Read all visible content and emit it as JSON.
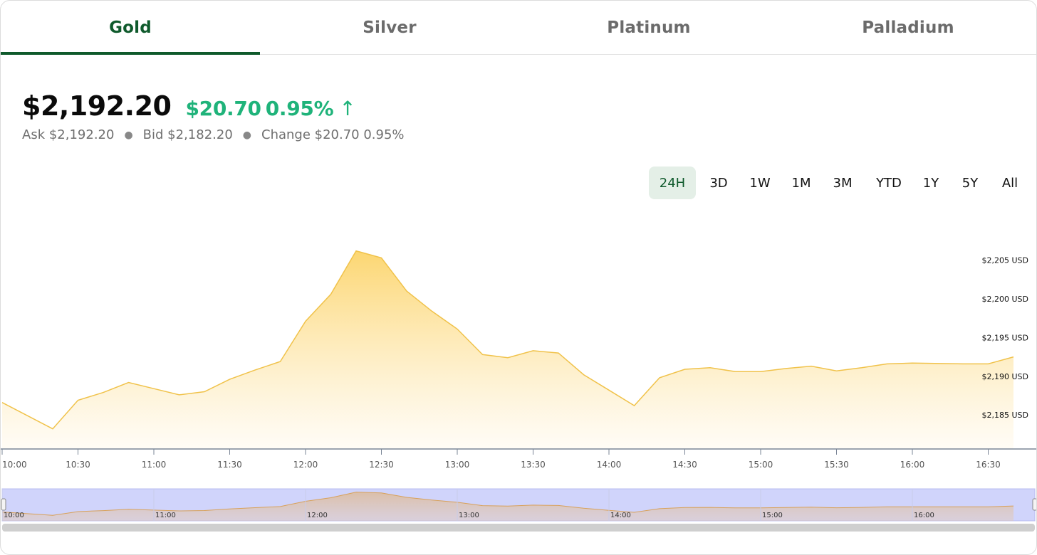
{
  "tabs": [
    {
      "label": "Gold",
      "active": true
    },
    {
      "label": "Silver",
      "active": false
    },
    {
      "label": "Platinum",
      "active": false
    },
    {
      "label": "Palladium",
      "active": false
    }
  ],
  "quote": {
    "price": "$2,192.20",
    "change": "$20.70",
    "change_pct": "0.95%",
    "arrow": "↑",
    "ask": "Ask $2,192.20",
    "bid": "Bid $2,182.20",
    "change_summary": "Change $20.70 0.95%"
  },
  "ranges": [
    {
      "label": "24H",
      "active": true
    },
    {
      "label": "3D",
      "active": false
    },
    {
      "label": "1W",
      "active": false
    },
    {
      "label": "1M",
      "active": false
    },
    {
      "label": "3M",
      "active": false
    },
    {
      "label": "YTD",
      "active": false
    },
    {
      "label": "1Y",
      "active": false
    },
    {
      "label": "5Y",
      "active": false
    },
    {
      "label": "All",
      "active": false
    }
  ],
  "colors": {
    "accent_green": "#0f5a2c",
    "positive": "#1fb37a",
    "line": "#f0c24a",
    "fill_top": "#fcd46a",
    "navigator_bg": "#d0d4fb"
  },
  "chart_data": {
    "type": "area",
    "ylim": [
      2180.6,
      2208.0
    ],
    "ytick_labels": [
      "$2,185 USD",
      "$2,190 USD",
      "$2,195 USD",
      "$2,200 USD",
      "$2,205 USD"
    ],
    "ytick_values": [
      2185,
      2190,
      2195,
      2200,
      2205
    ],
    "xtick_labels": [
      "10:00",
      "10:30",
      "11:00",
      "11:30",
      "12:00",
      "12:30",
      "13:00",
      "13:30",
      "14:00",
      "14:30",
      "15:00",
      "15:30",
      "16:00",
      "16:30"
    ],
    "xtick_values": [
      0,
      30,
      60,
      90,
      120,
      150,
      180,
      210,
      240,
      270,
      300,
      330,
      360,
      390
    ],
    "navigator_labels": [
      "10:00",
      "11:00",
      "12:00",
      "13:00",
      "14:00",
      "15:00",
      "16:00"
    ],
    "navigator_values": [
      0,
      60,
      120,
      180,
      240,
      300,
      360
    ],
    "points": [
      [
        0,
        2186.6
      ],
      [
        20,
        2183.2
      ],
      [
        30,
        2186.9
      ],
      [
        40,
        2187.9
      ],
      [
        50,
        2189.2
      ],
      [
        60,
        2188.4
      ],
      [
        70,
        2187.6
      ],
      [
        80,
        2188.0
      ],
      [
        90,
        2189.6
      ],
      [
        100,
        2190.8
      ],
      [
        110,
        2191.9
      ],
      [
        120,
        2197.1
      ],
      [
        130,
        2200.6
      ],
      [
        140,
        2206.2
      ],
      [
        150,
        2205.3
      ],
      [
        160,
        2201.0
      ],
      [
        170,
        2198.4
      ],
      [
        180,
        2196.1
      ],
      [
        190,
        2192.8
      ],
      [
        200,
        2192.4
      ],
      [
        210,
        2193.3
      ],
      [
        220,
        2193.0
      ],
      [
        230,
        2190.2
      ],
      [
        240,
        2188.2
      ],
      [
        250,
        2186.2
      ],
      [
        260,
        2189.8
      ],
      [
        270,
        2190.9
      ],
      [
        280,
        2191.1
      ],
      [
        290,
        2190.6
      ],
      [
        300,
        2190.6
      ],
      [
        310,
        2191.0
      ],
      [
        320,
        2191.3
      ],
      [
        330,
        2190.7
      ],
      [
        340,
        2191.1
      ],
      [
        350,
        2191.6
      ],
      [
        360,
        2191.7
      ],
      [
        380,
        2191.6
      ],
      [
        390,
        2191.6
      ],
      [
        400,
        2192.5
      ]
    ]
  }
}
